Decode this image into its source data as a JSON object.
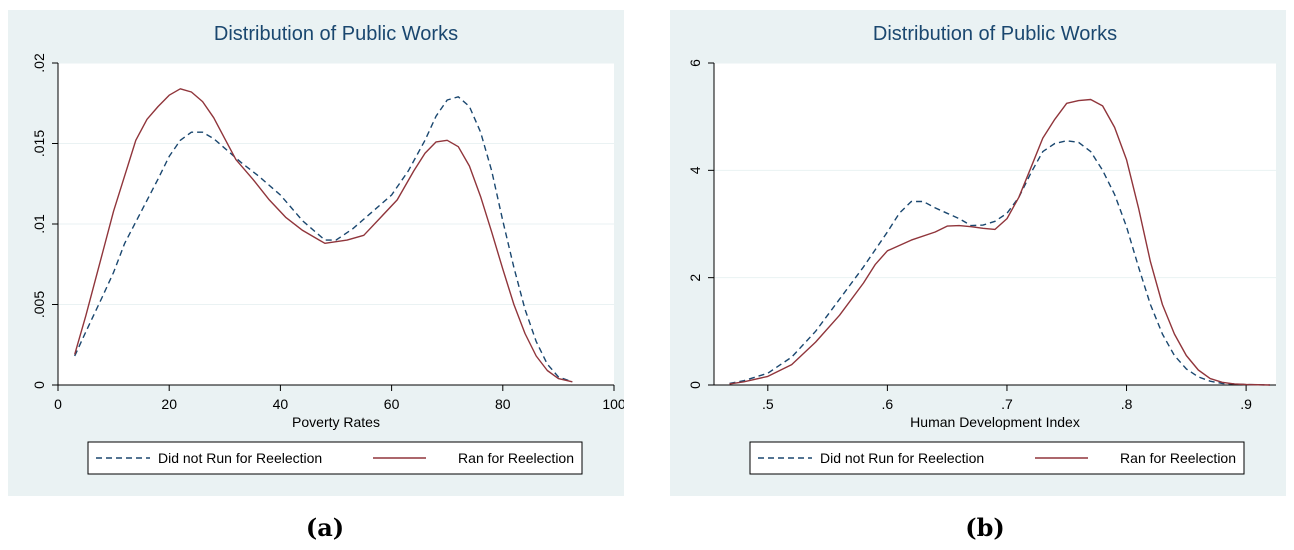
{
  "colors": {
    "panel_bg": "#eaf2f3",
    "title": "#1a476f",
    "did_not_run": "#1a476f",
    "ran": "#90353b",
    "grid": "#eaf2f3"
  },
  "chart_data": [
    {
      "panel_label": "(a)",
      "type": "line",
      "title": "Distribution of Public Works",
      "xlabel": "Poverty Rates",
      "ylabel": "",
      "xlim": [
        0,
        100
      ],
      "ylim": [
        0,
        0.02
      ],
      "x_ticks": [
        0,
        20,
        40,
        60,
        80,
        100
      ],
      "x_tick_labels": [
        "0",
        "20",
        "40",
        "60",
        "80",
        "100"
      ],
      "y_ticks": [
        0,
        0.005,
        0.01,
        0.015,
        0.02
      ],
      "y_tick_labels": [
        "0",
        ".005",
        ".01",
        ".015",
        ".02"
      ],
      "grid": true,
      "legend_position": "bottom",
      "legend": [
        "Did not Run for Reelection",
        "Ran for Reelection"
      ],
      "series": [
        {
          "name": "Did not Run for Reelection",
          "style": "dashed",
          "x": [
            3,
            5,
            8,
            10,
            12,
            15,
            18,
            20,
            22,
            24,
            26,
            28,
            30,
            33,
            36,
            40,
            44,
            48,
            50,
            53,
            56,
            60,
            63,
            66,
            68,
            70,
            72,
            74,
            76,
            78,
            80,
            82,
            84,
            86,
            88,
            90,
            92.5
          ],
          "y": [
            0.0018,
            0.0033,
            0.0055,
            0.007,
            0.0088,
            0.0108,
            0.0128,
            0.0142,
            0.0152,
            0.0157,
            0.0157,
            0.0153,
            0.0147,
            0.0138,
            0.013,
            0.0118,
            0.0102,
            0.009,
            0.009,
            0.0097,
            0.0106,
            0.0118,
            0.0133,
            0.0152,
            0.0167,
            0.0177,
            0.0179,
            0.0173,
            0.0157,
            0.0133,
            0.0102,
            0.0073,
            0.0047,
            0.0027,
            0.0013,
            0.0005,
            0.0002
          ]
        },
        {
          "name": "Ran for Reelection",
          "style": "solid",
          "x": [
            3,
            5,
            8,
            10,
            12,
            14,
            16,
            18,
            20,
            22,
            24,
            26,
            28,
            30,
            32,
            35,
            38,
            41,
            44,
            47,
            48,
            50,
            52,
            55,
            58,
            61,
            64,
            66,
            68,
            70,
            72,
            74,
            76,
            78,
            80,
            82,
            84,
            86,
            88,
            90,
            92.5
          ],
          "y": [
            0.0019,
            0.0043,
            0.0082,
            0.0108,
            0.013,
            0.0152,
            0.0165,
            0.0173,
            0.018,
            0.0184,
            0.0182,
            0.0176,
            0.0166,
            0.0153,
            0.014,
            0.0128,
            0.0115,
            0.0104,
            0.0096,
            0.009,
            0.0088,
            0.0089,
            0.009,
            0.0093,
            0.0104,
            0.0115,
            0.0133,
            0.0144,
            0.0151,
            0.0152,
            0.0148,
            0.0136,
            0.0117,
            0.0095,
            0.0072,
            0.005,
            0.0032,
            0.0018,
            0.0009,
            0.0004,
            0.0002
          ]
        }
      ]
    },
    {
      "panel_label": "(b)",
      "type": "line",
      "title": "Distribution of Public Works",
      "xlabel": "Human Development Index",
      "ylabel": "",
      "xlim": [
        0.455,
        0.925
      ],
      "ylim": [
        0,
        6
      ],
      "x_ticks": [
        0.5,
        0.6,
        0.7,
        0.8,
        0.9
      ],
      "x_tick_labels": [
        ".5",
        ".6",
        ".7",
        ".8",
        ".9"
      ],
      "y_ticks": [
        0,
        2,
        4,
        6
      ],
      "y_tick_labels": [
        "0",
        "2",
        "4",
        "6"
      ],
      "grid": true,
      "legend_position": "bottom",
      "legend": [
        "Did not Run for Reelection",
        "Ran for Reelection"
      ],
      "series": [
        {
          "name": "Did not Run for Reelection",
          "style": "dashed",
          "x": [
            0.468,
            0.48,
            0.5,
            0.52,
            0.54,
            0.56,
            0.58,
            0.6,
            0.61,
            0.62,
            0.63,
            0.64,
            0.65,
            0.66,
            0.67,
            0.68,
            0.69,
            0.7,
            0.71,
            0.72,
            0.73,
            0.74,
            0.75,
            0.76,
            0.77,
            0.78,
            0.79,
            0.8,
            0.81,
            0.82,
            0.83,
            0.84,
            0.85,
            0.86,
            0.87,
            0.88,
            0.9,
            0.92
          ],
          "y": [
            0.03,
            0.08,
            0.22,
            0.52,
            1.0,
            1.6,
            2.2,
            2.85,
            3.2,
            3.42,
            3.42,
            3.3,
            3.2,
            3.1,
            2.97,
            2.98,
            3.05,
            3.2,
            3.5,
            3.95,
            4.35,
            4.5,
            4.55,
            4.52,
            4.35,
            4.0,
            3.55,
            2.95,
            2.2,
            1.5,
            0.95,
            0.55,
            0.3,
            0.15,
            0.07,
            0.03,
            0.01,
            0.0
          ]
        },
        {
          "name": "Ran for Reelection",
          "style": "solid",
          "x": [
            0.468,
            0.48,
            0.5,
            0.52,
            0.54,
            0.56,
            0.58,
            0.59,
            0.6,
            0.62,
            0.64,
            0.65,
            0.66,
            0.67,
            0.68,
            0.69,
            0.7,
            0.71,
            0.72,
            0.73,
            0.74,
            0.75,
            0.76,
            0.77,
            0.78,
            0.79,
            0.8,
            0.81,
            0.82,
            0.83,
            0.84,
            0.85,
            0.86,
            0.87,
            0.88,
            0.89,
            0.9,
            0.92
          ],
          "y": [
            0.02,
            0.06,
            0.16,
            0.38,
            0.8,
            1.3,
            1.9,
            2.25,
            2.5,
            2.7,
            2.85,
            2.96,
            2.97,
            2.95,
            2.92,
            2.9,
            3.1,
            3.5,
            4.05,
            4.6,
            4.95,
            5.25,
            5.3,
            5.32,
            5.2,
            4.8,
            4.2,
            3.3,
            2.3,
            1.5,
            0.95,
            0.55,
            0.28,
            0.12,
            0.05,
            0.02,
            0.01,
            0.0
          ]
        }
      ]
    }
  ]
}
